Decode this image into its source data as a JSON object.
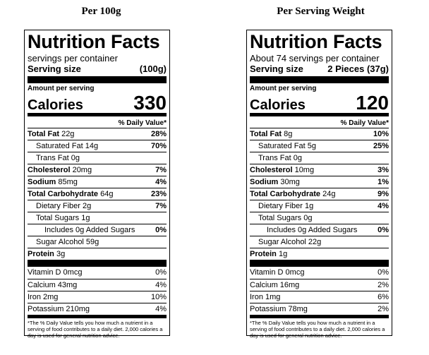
{
  "panels": [
    {
      "heading": "Per 100g",
      "title": "Nutrition Facts",
      "servings_text": "servings per container",
      "serving_size_label": "Serving size",
      "serving_size_value": "(100g)",
      "amount_label": "Amount per serving",
      "calories_label": "Calories",
      "calories_value": "330",
      "dv_header": "% Daily Value*",
      "rows": [
        {
          "label": "Total Fat",
          "amount": " 22g",
          "pct": "28%"
        },
        {
          "label": "Saturated Fat 14g",
          "pct": "70%"
        },
        {
          "label": "Trans Fat 0g",
          "pct": ""
        },
        {
          "label": "Cholesterol",
          "amount": " 20mg",
          "pct": "7%"
        },
        {
          "label": "Sodium",
          "amount": " 85mg",
          "pct": "4%"
        },
        {
          "label": "Total Carbohydrate",
          "amount": " 64g",
          "pct": "23%"
        },
        {
          "label": "Dietary Fiber 2g",
          "pct": "7%"
        },
        {
          "label": "Total Sugars 1g",
          "pct": ""
        },
        {
          "label": "Includes 0g Added Sugars",
          "pct": "0%"
        },
        {
          "label": "Sugar Alcohol 59g",
          "pct": ""
        },
        {
          "label": "Protein",
          "amount": " 3g",
          "pct": ""
        }
      ],
      "vitamins": [
        {
          "label": "Vitamin D 0mcg",
          "pct": "0%"
        },
        {
          "label": "Calcium 43mg",
          "pct": "4%"
        },
        {
          "label": "Iron 2mg",
          "pct": "10%"
        },
        {
          "label": "Potassium 210mg",
          "pct": "4%"
        }
      ],
      "footnote": "*The % Daily Value tells you how much a nutrient in a serving of food contributes to a daily diet. 2,000 calories a day is used for general nutrition advice."
    },
    {
      "heading": "Per Serving Weight",
      "title": "Nutrition Facts",
      "servings_text": "About 74 servings per container",
      "serving_size_label": "Serving size",
      "serving_size_value": "2 Pieces (37g)",
      "amount_label": "Amount per serving",
      "calories_label": "Calories",
      "calories_value": "120",
      "dv_header": "% Daily Value*",
      "rows": [
        {
          "label": "Total Fat",
          "amount": " 8g",
          "pct": "10%"
        },
        {
          "label": "Saturated Fat 5g",
          "pct": "25%"
        },
        {
          "label": "Trans Fat 0g",
          "pct": ""
        },
        {
          "label": "Cholesterol",
          "amount": " 10mg",
          "pct": "3%"
        },
        {
          "label": "Sodium",
          "amount": " 30mg",
          "pct": "1%"
        },
        {
          "label": "Total Carbohydrate",
          "amount": " 24g",
          "pct": "9%"
        },
        {
          "label": "Dietary Fiber 1g",
          "pct": "4%"
        },
        {
          "label": "Total Sugars 0g",
          "pct": ""
        },
        {
          "label": "Includes 0g Added Sugars",
          "pct": "0%"
        },
        {
          "label": "Sugar Alcohol 22g",
          "pct": ""
        },
        {
          "label": "Protein",
          "amount": " 1g",
          "pct": ""
        }
      ],
      "vitamins": [
        {
          "label": "Vitamin D 0mcg",
          "pct": "0%"
        },
        {
          "label": "Calcium 16mg",
          "pct": "2%"
        },
        {
          "label": "Iron 1mg",
          "pct": "6%"
        },
        {
          "label": "Potassium 78mg",
          "pct": "2%"
        }
      ],
      "footnote": "*The % Daily Value tells you how much a nutrient in a serving of food contributes to a daily diet. 2,000 calories a day is used for general nutrition advice."
    }
  ]
}
